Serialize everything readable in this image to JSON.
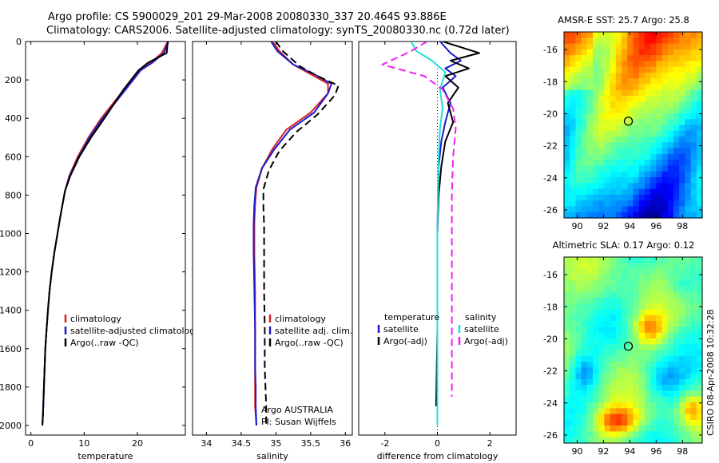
{
  "title": {
    "line1": "Argo profile: CS 5900029_201 29-Mar-2008 20080330_337 20.464S 93.886E",
    "line2": "Climatology: CARS2006. Satellite-adjusted climatology: synTS_20080330.nc (0.72d later)"
  },
  "stamp": "CSIRO 08-Apr-2008 10:32:28",
  "colors": {
    "climatology": "#d42020",
    "satellite": "#1a1acc",
    "argo": "#000000",
    "sal_satellite": "#22dddd",
    "sal_argo": "#ee22ee"
  },
  "chart_data": [
    {
      "type": "line",
      "name": "temperature-panel",
      "xlabel": "temperature",
      "ylabel": "",
      "xlim": [
        -1,
        29
      ],
      "ylim": [
        0,
        2050
      ],
      "y_inverted": true,
      "xticks": [
        0,
        10,
        20
      ],
      "yticks": [
        0,
        200,
        400,
        600,
        800,
        1000,
        1200,
        1400,
        1600,
        1800,
        2000
      ],
      "legend": [
        "climatology",
        "satellite-adjusted climatology",
        "Argo(..raw -QC)"
      ],
      "series": [
        {
          "name": "climatology",
          "color": "#d42020",
          "dash": "solid",
          "x": [
            25.7,
            24.6,
            22.5,
            20.5,
            17.5,
            13.2,
            10.8,
            8.8,
            7.2,
            6.4,
            5.6,
            5.0,
            4.4,
            3.9,
            3.5,
            3.2,
            2.95,
            2.7,
            2.45,
            2.25,
            2.15
          ],
          "y": [
            0,
            60,
            110,
            150,
            250,
            400,
            500,
            600,
            700,
            780,
            900,
            1000,
            1100,
            1200,
            1300,
            1400,
            1500,
            1600,
            1800,
            1950,
            2000
          ]
        },
        {
          "name": "satellite-adjusted climatology",
          "color": "#1a1acc",
          "dash": "solid",
          "x": [
            25.8,
            25.0,
            22.8,
            20.6,
            17.8,
            13.5,
            11.0,
            9.0,
            7.3,
            6.4,
            5.6,
            5.0,
            4.4,
            3.9,
            3.5,
            3.2,
            2.95,
            2.7,
            2.45,
            2.25,
            2.15
          ],
          "y": [
            0,
            60,
            110,
            150,
            250,
            400,
            500,
            600,
            700,
            780,
            900,
            1000,
            1100,
            1200,
            1300,
            1400,
            1500,
            1600,
            1800,
            1950,
            2000
          ]
        },
        {
          "name": "Argo(..raw -QC)",
          "color": "#000000",
          "dash": "solid",
          "x": [
            25.7,
            25.5,
            22.0,
            20.2,
            17.4,
            13.8,
            11.3,
            9.1,
            7.4,
            6.4,
            5.6,
            5.0,
            4.4,
            3.9,
            3.5,
            3.2,
            2.95,
            2.7,
            2.45,
            2.25,
            2.15
          ],
          "y": [
            0,
            60,
            110,
            150,
            250,
            400,
            500,
            600,
            700,
            780,
            900,
            1000,
            1100,
            1200,
            1300,
            1400,
            1500,
            1600,
            1800,
            1950,
            2000
          ]
        }
      ]
    },
    {
      "type": "line",
      "name": "salinity-panel",
      "xlabel": "salinity",
      "xlim": [
        33.8,
        36.1
      ],
      "ylim": [
        0,
        2050
      ],
      "y_inverted": true,
      "xticks": [
        34,
        34.5,
        35,
        35.5,
        36
      ],
      "legend": [
        "climatology",
        "satellite adj. clim.",
        "Argo(..raw -QC)"
      ],
      "annotation": [
        "Argo AUSTRALIA",
        "PI: Susan Wijffels"
      ],
      "series": [
        {
          "name": "climatology",
          "color": "#d42020",
          "dash": "solid",
          "x": [
            34.95,
            35.05,
            35.25,
            35.5,
            35.75,
            35.75,
            35.5,
            35.15,
            34.95,
            34.8,
            34.72,
            34.7,
            34.69,
            34.69,
            34.7,
            34.7,
            34.7,
            34.7,
            34.7,
            34.72
          ],
          "y": [
            0,
            50,
            120,
            170,
            220,
            270,
            370,
            460,
            560,
            660,
            760,
            850,
            950,
            1100,
            1300,
            1500,
            1700,
            1800,
            1900,
            2000
          ]
        },
        {
          "name": "satellite adj. clim.",
          "color": "#1a1acc",
          "dash": "solid",
          "x": [
            34.93,
            35.02,
            35.25,
            35.55,
            35.8,
            35.75,
            35.55,
            35.2,
            34.98,
            34.8,
            34.71,
            34.69,
            34.68,
            34.68,
            34.69,
            34.7,
            34.7,
            34.71,
            34.71,
            34.72
          ],
          "y": [
            0,
            50,
            120,
            170,
            220,
            270,
            370,
            460,
            560,
            660,
            760,
            850,
            950,
            1100,
            1300,
            1500,
            1700,
            1800,
            1900,
            2000
          ]
        },
        {
          "name": "Argo(..raw -QC)",
          "color": "#000000",
          "dash": "dashed",
          "x": [
            35.0,
            35.1,
            35.35,
            35.6,
            35.9,
            35.85,
            35.6,
            35.3,
            35.05,
            34.9,
            34.82,
            34.82,
            34.83,
            34.83,
            34.83,
            34.84,
            34.84,
            34.85,
            34.86,
            34.86
          ],
          "y": [
            0,
            50,
            130,
            180,
            230,
            280,
            380,
            470,
            570,
            670,
            770,
            860,
            960,
            1100,
            1300,
            1500,
            1700,
            1800,
            1900,
            2000
          ]
        }
      ]
    },
    {
      "type": "line",
      "name": "difference-panel",
      "xlabel": "difference from climatology",
      "xlim": [
        -3,
        3
      ],
      "ylim": [
        0,
        2050
      ],
      "y_inverted": true,
      "xticks": [
        -2,
        0,
        2
      ],
      "legend_temperature": {
        "heading": "temperature",
        "items": [
          "satellite",
          "Argo(-adj)"
        ]
      },
      "legend_salinity": {
        "heading": "salinity",
        "items": [
          "satellite",
          "Argo(-adj)"
        ]
      },
      "series": [
        {
          "name": "temperature satellite",
          "color": "#1a1acc",
          "dash": "solid",
          "x": [
            0.1,
            0.5,
            0.9,
            0.3,
            0.7,
            0.2,
            0.5,
            0.3,
            0.15,
            0.05,
            0.02,
            0.0,
            0.0,
            0.0
          ],
          "y": [
            0,
            60,
            100,
            140,
            180,
            240,
            320,
            420,
            520,
            650,
            800,
            1000,
            1500,
            2000
          ]
        },
        {
          "name": "temperature Argo(-adj)",
          "color": "#000000",
          "dash": "solid",
          "x": [
            0.2,
            1.6,
            0.5,
            1.2,
            0.3,
            0.8,
            0.4,
            0.6,
            0.3,
            0.15,
            0.05,
            0.0,
            0.0,
            -0.05
          ],
          "y": [
            0,
            60,
            100,
            140,
            180,
            240,
            320,
            420,
            520,
            650,
            800,
            1000,
            1500,
            1900
          ]
        },
        {
          "name": "salinity satellite",
          "color": "#22dddd",
          "dash": "solid",
          "x": [
            -1.0,
            -0.8,
            -0.2,
            0.3,
            0.1,
            0.2,
            0.1,
            0.05,
            0.02,
            0.0,
            0.0,
            0.0
          ],
          "y": [
            0,
            50,
            100,
            160,
            250,
            350,
            450,
            600,
            800,
            1000,
            1500,
            2000
          ]
        },
        {
          "name": "salinity Argo(-adj)",
          "color": "#ee22ee",
          "dash": "dashed",
          "x": [
            -0.4,
            -1.0,
            -2.1,
            -0.5,
            0.2,
            0.6,
            0.7,
            0.6,
            0.55,
            0.55,
            0.55,
            0.55
          ],
          "y": [
            0,
            50,
            120,
            180,
            250,
            350,
            450,
            600,
            800,
            1000,
            1500,
            1850
          ]
        }
      ]
    },
    {
      "type": "heatmap",
      "name": "sst-map",
      "title": "AMSR-E SST: 25.7 Argo: 25.8",
      "xlim": [
        89,
        99.5
      ],
      "ylim": [
        -26.5,
        -14.9
      ],
      "xticks": [
        90,
        92,
        94,
        96,
        98
      ],
      "yticks": [
        -16,
        -18,
        -20,
        -22,
        -24,
        -26
      ],
      "marker": {
        "lon": 93.886,
        "lat": -20.464
      }
    },
    {
      "type": "heatmap",
      "name": "sla-map",
      "title": "Altimetric SLA: 0.17 Argo: 0.12",
      "xlim": [
        89,
        99.5
      ],
      "ylim": [
        -26.5,
        -14.9
      ],
      "xticks": [
        90,
        92,
        94,
        96,
        98
      ],
      "yticks": [
        -16,
        -18,
        -20,
        -22,
        -24,
        -26
      ],
      "marker": {
        "lon": 93.886,
        "lat": -20.464
      }
    }
  ]
}
